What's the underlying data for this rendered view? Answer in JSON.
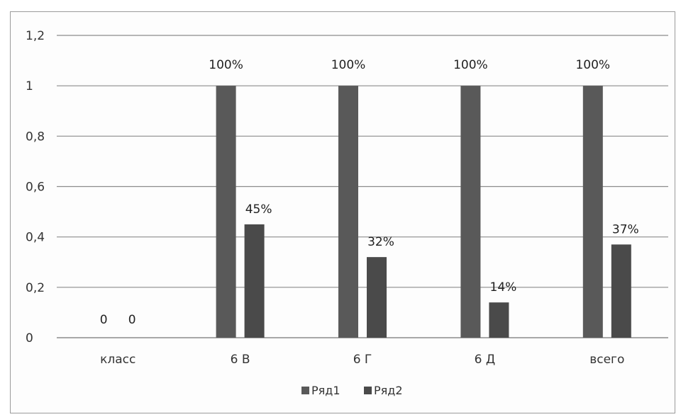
{
  "chart_data": {
    "type": "bar",
    "categories": [
      "класс",
      "6 В",
      "6 Г",
      "6 Д",
      "всего"
    ],
    "series": [
      {
        "name": "Ряд1",
        "values": [
          0,
          1,
          1,
          1,
          1
        ],
        "labels": [
          "0",
          "100%",
          "100%",
          "100%",
          "100%"
        ],
        "color": "#595959"
      },
      {
        "name": "Ряд2",
        "values": [
          0,
          0.45,
          0.32,
          0.14,
          0.37
        ],
        "labels": [
          "0",
          "45%",
          "32%",
          "14%",
          "37%"
        ],
        "color": "#4a4a4a"
      }
    ],
    "y_ticks": [
      "0",
      "0,2",
      "0,4",
      "0,6",
      "0,8",
      "1",
      "1,2"
    ],
    "ylim": [
      0,
      1.2
    ],
    "grid": true,
    "legend_position": "bottom"
  }
}
